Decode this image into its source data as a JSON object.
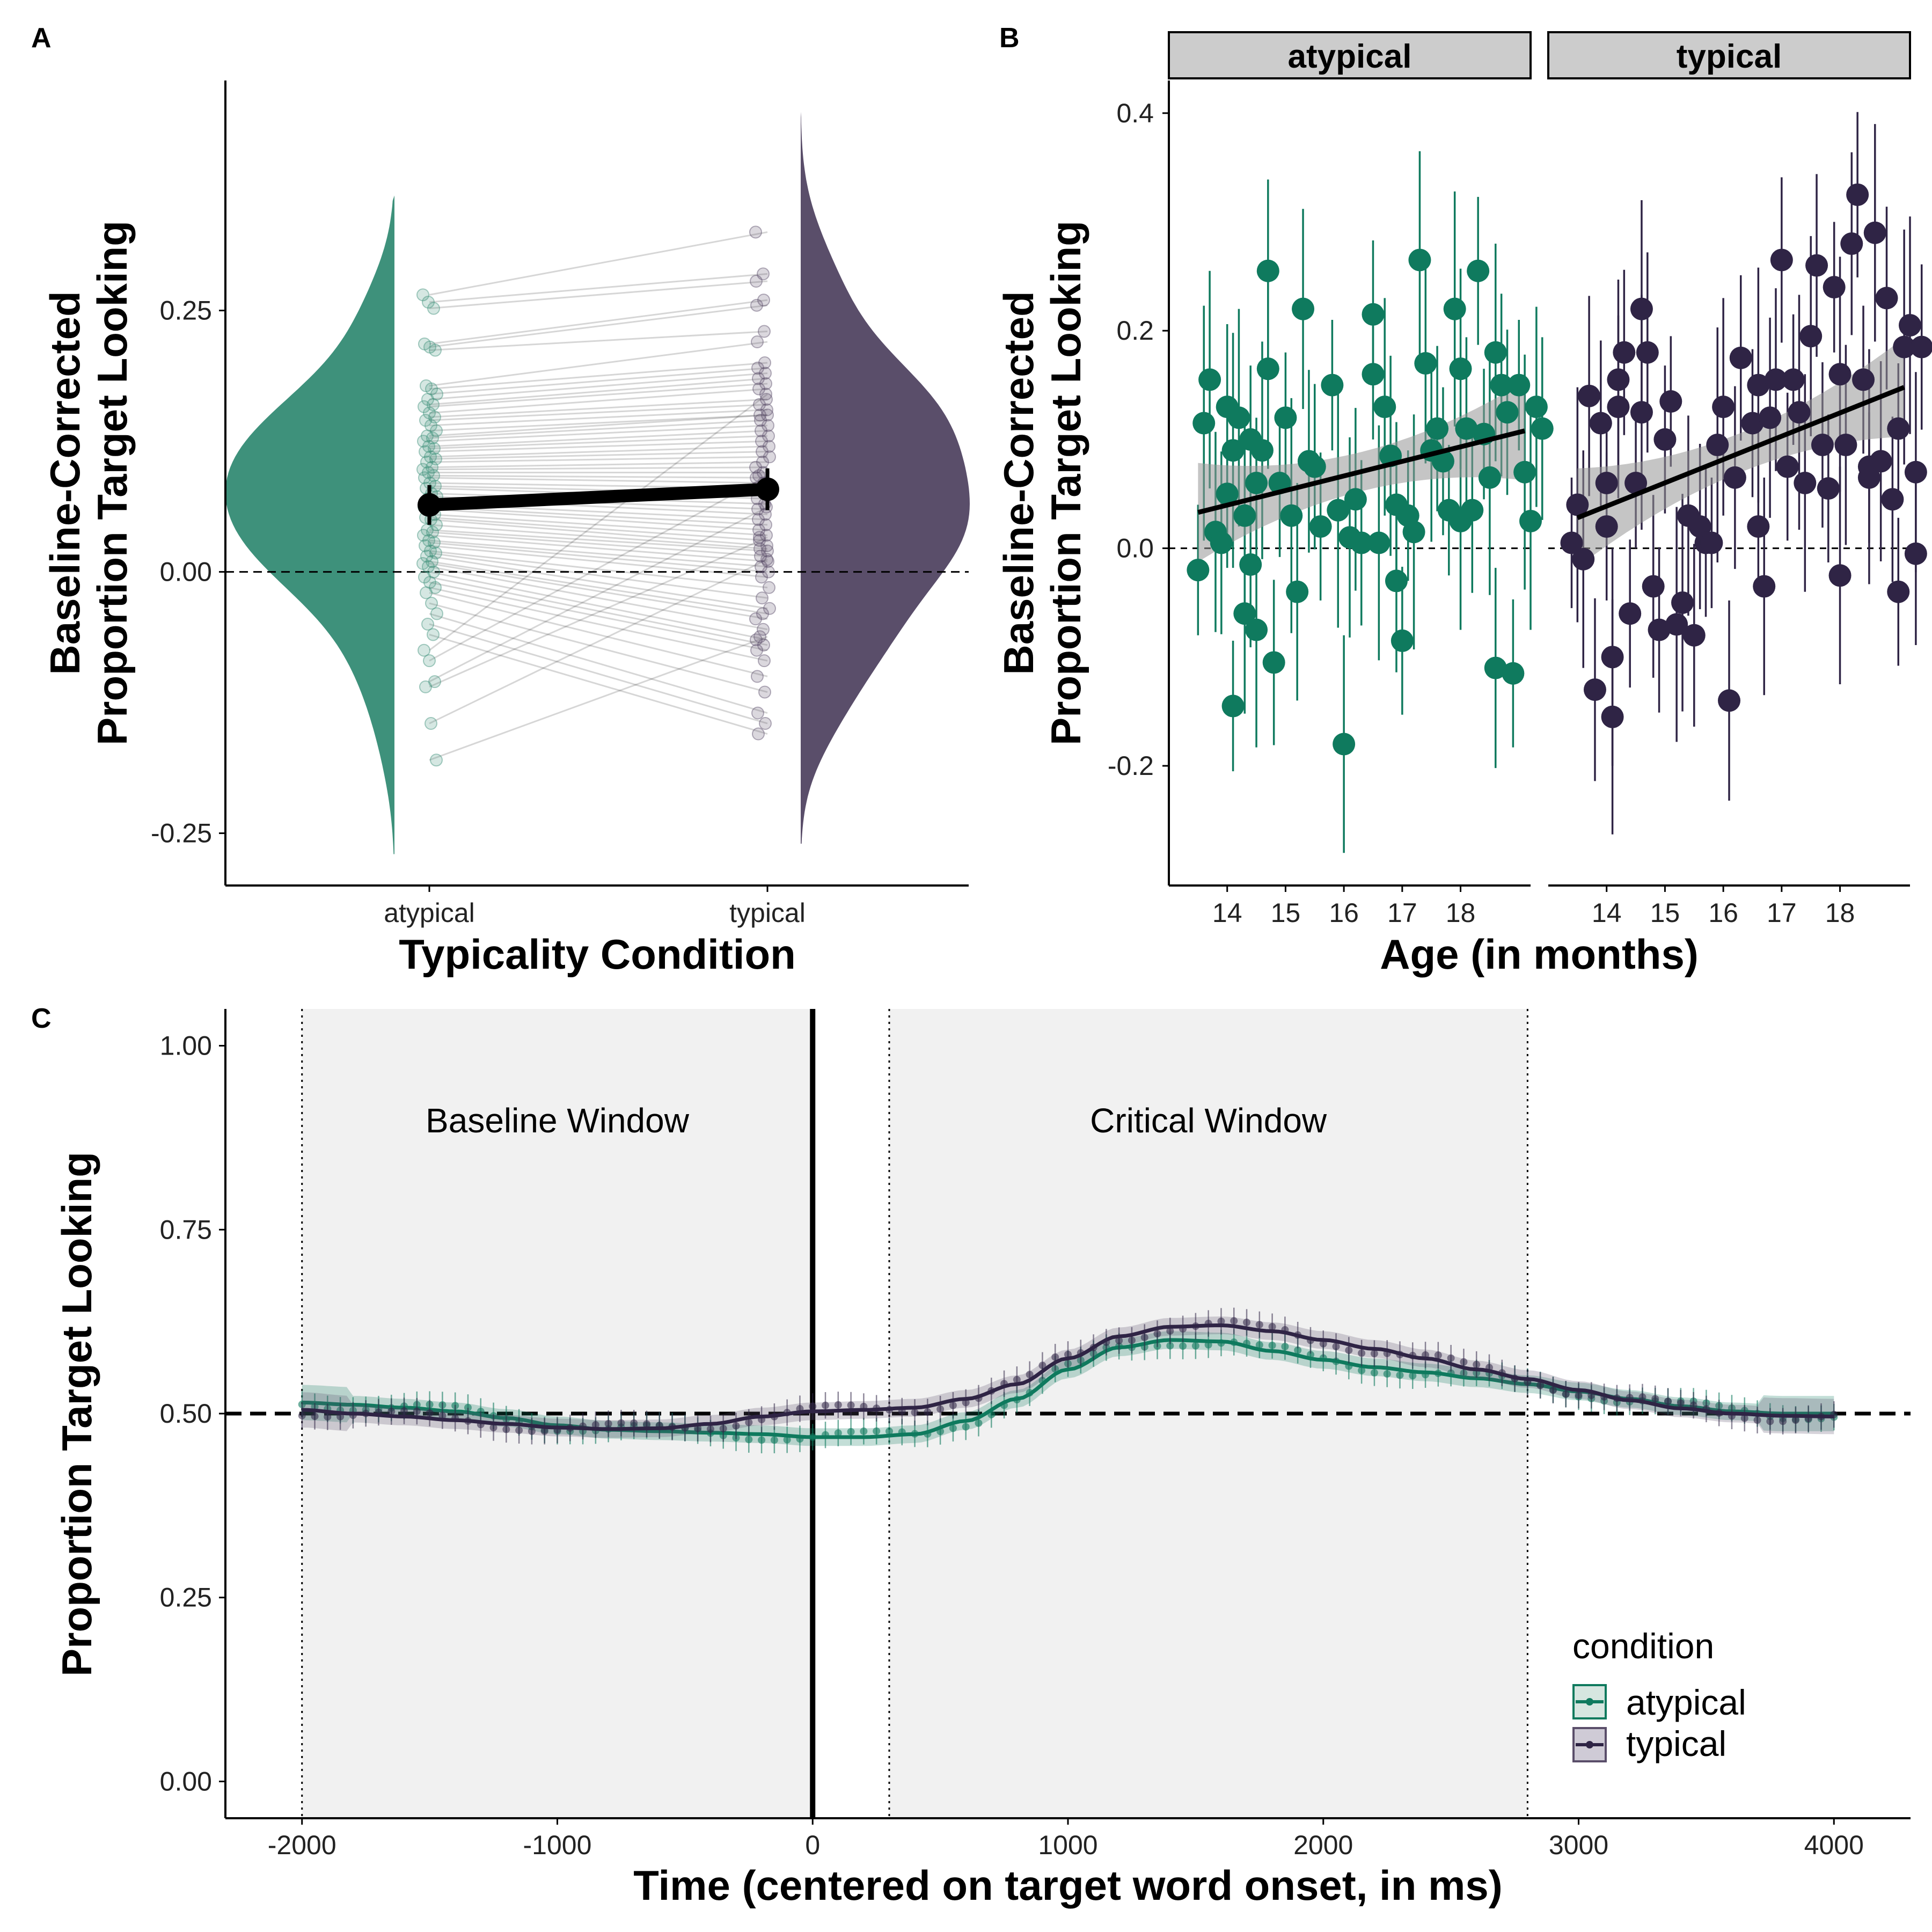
{
  "panels": {
    "A": {
      "letter": "A",
      "chart_data": {
        "type": "raincloud",
        "categories": [
          "atypical",
          "typical"
        ],
        "xlabel": "Typicality Condition",
        "ylabel_line1": "Baseline-Corrected",
        "ylabel_line2": "Proportion Target Looking",
        "ylim": [
          -0.3,
          0.47
        ],
        "yticks": [
          "-0.25",
          "0.00",
          "0.25"
        ],
        "reference_line": 0.0,
        "means": [
          0.064,
          0.079
        ],
        "mean_ci": [
          [
            0.045,
            0.083
          ],
          [
            0.059,
            0.099
          ]
        ],
        "subjects_atypical": [
          0.265,
          0.258,
          0.252,
          0.218,
          0.215,
          0.212,
          0.178,
          0.175,
          0.17,
          0.165,
          0.16,
          0.158,
          0.152,
          0.148,
          0.145,
          0.14,
          0.135,
          0.13,
          0.128,
          0.125,
          0.12,
          0.118,
          0.115,
          0.11,
          0.108,
          0.105,
          0.1,
          0.098,
          0.095,
          0.092,
          0.09,
          0.085,
          0.082,
          0.08,
          0.075,
          0.072,
          0.07,
          0.065,
          0.062,
          0.06,
          0.055,
          0.052,
          0.05,
          0.045,
          0.04,
          0.038,
          0.035,
          0.03,
          0.028,
          0.025,
          0.02,
          0.018,
          0.015,
          0.01,
          0.008,
          0.005,
          0.0,
          -0.005,
          -0.01,
          -0.015,
          -0.02,
          -0.03,
          -0.04,
          -0.05,
          -0.06,
          -0.075,
          -0.085,
          -0.105,
          -0.11,
          -0.145,
          -0.18
        ],
        "subjects_typical": [
          0.325,
          0.285,
          0.278,
          0.26,
          0.255,
          0.23,
          0.22,
          0.2,
          0.195,
          0.19,
          0.185,
          0.18,
          0.175,
          0.165,
          0.16,
          0.155,
          0.15,
          0.15,
          0.145,
          0.14,
          0.135,
          0.13,
          0.125,
          0.12,
          0.115,
          0.11,
          0.105,
          0.1,
          0.095,
          0.09,
          0.085,
          0.08,
          0.075,
          0.07,
          0.065,
          0.06,
          0.055,
          0.05,
          0.045,
          0.04,
          0.035,
          0.03,
          0.025,
          0.022,
          0.02,
          0.015,
          0.01,
          0.005,
          0.0,
          -0.005,
          -0.015,
          -0.025,
          -0.035,
          -0.04,
          -0.045,
          -0.055,
          -0.065,
          -0.07,
          -0.075,
          -0.085,
          -0.1,
          -0.115,
          -0.135,
          -0.145,
          -0.155,
          0.17,
          0.092,
          0.062,
          0.033,
          0.012,
          -0.062
        ],
        "colors": {
          "atypical": "#3e917b",
          "typical": "#5a4e6a",
          "lines": "#000000"
        }
      }
    },
    "B": {
      "letter": "B",
      "chart_data": {
        "type": "scatter",
        "facets": [
          "atypical",
          "typical"
        ],
        "xlabel": "Age (in months)",
        "ylabel_line1": "Baseline-Corrected",
        "ylabel_line2": "Proportion Target Looking",
        "xlim": [
          13.0,
          19.2
        ],
        "xticks": [
          "14",
          "15",
          "16",
          "17",
          "18"
        ],
        "ylim": [
          -0.31,
          0.43
        ],
        "yticks": [
          "-0.2",
          "0.0",
          "0.2",
          "0.4"
        ],
        "reference_line": 0.0,
        "colors": {
          "atypical": "#0f7a5e",
          "typical": "#2f2445"
        },
        "series": [
          {
            "name": "atypical",
            "trend": {
              "x": [
                13.5,
                19.1
              ],
              "y": [
                0.033,
                0.108
              ]
            },
            "points": [
              [
                13.5,
                -0.02
              ],
              [
                13.6,
                0.115
              ],
              [
                13.7,
                0.155
              ],
              [
                13.8,
                0.015
              ],
              [
                13.9,
                0.005
              ],
              [
                14.0,
                0.13
              ],
              [
                14.0,
                0.05
              ],
              [
                14.1,
                -0.145
              ],
              [
                14.1,
                0.09
              ],
              [
                14.2,
                0.12
              ],
              [
                14.3,
                -0.06
              ],
              [
                14.3,
                0.03
              ],
              [
                14.4,
                -0.015
              ],
              [
                14.4,
                0.1
              ],
              [
                14.5,
                0.06
              ],
              [
                14.5,
                -0.075
              ],
              [
                14.6,
                0.09
              ],
              [
                14.7,
                0.165
              ],
              [
                14.7,
                0.255
              ],
              [
                14.8,
                -0.105
              ],
              [
                14.9,
                0.06
              ],
              [
                15.0,
                0.12
              ],
              [
                15.1,
                0.03
              ],
              [
                15.2,
                -0.04
              ],
              [
                15.3,
                0.22
              ],
              [
                15.4,
                0.08
              ],
              [
                15.5,
                0.075
              ],
              [
                15.6,
                0.02
              ],
              [
                15.8,
                0.15
              ],
              [
                15.9,
                0.035
              ],
              [
                16.0,
                -0.18
              ],
              [
                16.1,
                0.01
              ],
              [
                16.2,
                0.045
              ],
              [
                16.3,
                0.005
              ],
              [
                16.5,
                0.215
              ],
              [
                16.5,
                0.16
              ],
              [
                16.6,
                0.005
              ],
              [
                16.7,
                0.13
              ],
              [
                16.8,
                0.085
              ],
              [
                16.9,
                -0.03
              ],
              [
                16.9,
                0.04
              ],
              [
                17.0,
                -0.085
              ],
              [
                17.1,
                0.03
              ],
              [
                17.2,
                0.015
              ],
              [
                17.3,
                0.265
              ],
              [
                17.4,
                0.17
              ],
              [
                17.5,
                0.09
              ],
              [
                17.6,
                0.11
              ],
              [
                17.7,
                0.08
              ],
              [
                17.8,
                0.035
              ],
              [
                17.9,
                0.22
              ],
              [
                18.0,
                0.025
              ],
              [
                18.0,
                0.165
              ],
              [
                18.1,
                0.11
              ],
              [
                18.2,
                0.035
              ],
              [
                18.3,
                0.255
              ],
              [
                18.4,
                0.105
              ],
              [
                18.5,
                0.065
              ],
              [
                18.6,
                0.18
              ],
              [
                18.6,
                -0.11
              ],
              [
                18.7,
                0.15
              ],
              [
                18.8,
                0.125
              ],
              [
                18.9,
                -0.115
              ],
              [
                19.0,
                0.15
              ],
              [
                19.1,
                0.07
              ],
              [
                19.2,
                0.025
              ],
              [
                19.3,
                0.13
              ],
              [
                19.4,
                0.11
              ]
            ]
          },
          {
            "name": "typical",
            "trend": {
              "x": [
                13.5,
                19.1
              ],
              "y": [
                0.028,
                0.148
              ]
            },
            "points": [
              [
                13.4,
                0.005
              ],
              [
                13.5,
                0.04
              ],
              [
                13.6,
                -0.01
              ],
              [
                13.7,
                0.14
              ],
              [
                13.8,
                -0.13
              ],
              [
                13.9,
                0.115
              ],
              [
                14.0,
                0.02
              ],
              [
                14.0,
                0.06
              ],
              [
                14.1,
                -0.155
              ],
              [
                14.1,
                -0.1
              ],
              [
                14.2,
                0.155
              ],
              [
                14.2,
                0.13
              ],
              [
                14.3,
                0.18
              ],
              [
                14.4,
                -0.06
              ],
              [
                14.5,
                0.06
              ],
              [
                14.6,
                0.125
              ],
              [
                14.6,
                0.22
              ],
              [
                14.7,
                0.18
              ],
              [
                14.8,
                -0.035
              ],
              [
                14.9,
                -0.075
              ],
              [
                15.0,
                0.1
              ],
              [
                15.1,
                0.135
              ],
              [
                15.2,
                -0.07
              ],
              [
                15.3,
                -0.05
              ],
              [
                15.4,
                0.03
              ],
              [
                15.5,
                -0.08
              ],
              [
                15.6,
                0.02
              ],
              [
                15.7,
                0.005
              ],
              [
                15.8,
                0.005
              ],
              [
                15.9,
                0.095
              ],
              [
                16.0,
                0.13
              ],
              [
                16.1,
                -0.14
              ],
              [
                16.2,
                0.065
              ],
              [
                16.3,
                0.175
              ],
              [
                16.5,
                0.115
              ],
              [
                16.6,
                0.02
              ],
              [
                16.6,
                0.15
              ],
              [
                16.7,
                -0.035
              ],
              [
                16.8,
                0.12
              ],
              [
                16.9,
                0.155
              ],
              [
                17.0,
                0.265
              ],
              [
                17.1,
                0.075
              ],
              [
                17.2,
                0.155
              ],
              [
                17.3,
                0.125
              ],
              [
                17.4,
                0.06
              ],
              [
                17.5,
                0.195
              ],
              [
                17.6,
                0.26
              ],
              [
                17.7,
                0.095
              ],
              [
                17.8,
                0.055
              ],
              [
                17.9,
                0.24
              ],
              [
                18.0,
                0.16
              ],
              [
                18.0,
                -0.025
              ],
              [
                18.1,
                0.095
              ],
              [
                18.2,
                0.28
              ],
              [
                18.3,
                0.325
              ],
              [
                18.4,
                0.155
              ],
              [
                18.5,
                0.065
              ],
              [
                18.5,
                0.075
              ],
              [
                18.6,
                0.29
              ],
              [
                18.7,
                0.08
              ],
              [
                18.8,
                0.23
              ],
              [
                18.9,
                0.045
              ],
              [
                19.0,
                -0.04
              ],
              [
                19.0,
                0.11
              ],
              [
                19.1,
                0.185
              ],
              [
                19.2,
                0.205
              ],
              [
                19.3,
                0.07
              ],
              [
                19.3,
                -0.005
              ],
              [
                19.4,
                0.185
              ]
            ]
          }
        ]
      }
    },
    "C": {
      "letter": "C",
      "chart_data": {
        "type": "line",
        "xlabel": "Time (centered on target word onset, in ms)",
        "ylabel": "Proportion Target Looking",
        "xlim": [
          -2300,
          4300
        ],
        "xticks": [
          "-2000",
          "-1000",
          "0",
          "1000",
          "2000",
          "3000",
          "4000"
        ],
        "ylim": [
          -0.05,
          1.05
        ],
        "yticks": [
          "0.00",
          "0.25",
          "0.50",
          "0.75",
          "1.00"
        ],
        "reference_line": 0.5,
        "onset_line": 0,
        "windows": [
          {
            "label": "Baseline Window",
            "start": -2000,
            "end": 0
          },
          {
            "label": "Critical Window",
            "start": 300,
            "end": 2800
          }
        ],
        "legend_title": "condition",
        "colors": {
          "atypical": "#0f7a5e",
          "typical": "#2f2445"
        },
        "series": [
          {
            "name": "atypical",
            "x": [
              -2000,
              -1800,
              -1600,
              -1400,
              -1200,
              -1000,
              -800,
              -600,
              -400,
              -200,
              0,
              200,
              400,
              600,
              800,
              1000,
              1200,
              1400,
              1600,
              1800,
              2000,
              2200,
              2400,
              2600,
              2800,
              3000,
              3200,
              3400,
              3600,
              3800,
              4000
            ],
            "y": [
              0.515,
              0.512,
              0.508,
              0.503,
              0.494,
              0.484,
              0.478,
              0.476,
              0.474,
              0.472,
              0.468,
              0.468,
              0.472,
              0.49,
              0.52,
              0.56,
              0.59,
              0.6,
              0.598,
              0.585,
              0.573,
              0.563,
              0.556,
              0.548,
              0.54,
              0.53,
              0.52,
              0.51,
              0.503,
              0.5,
              0.5
            ]
          },
          {
            "name": "typical",
            "x": [
              -2000,
              -1800,
              -1600,
              -1400,
              -1200,
              -1000,
              -800,
              -600,
              -400,
              -200,
              0,
              200,
              400,
              600,
              800,
              1000,
              1200,
              1400,
              1600,
              1800,
              2000,
              2200,
              2400,
              2600,
              2800,
              3000,
              3200,
              3400,
              3600,
              3800,
              4000
            ],
            "y": [
              0.505,
              0.5,
              0.496,
              0.491,
              0.486,
              0.481,
              0.479,
              0.48,
              0.486,
              0.496,
              0.503,
              0.505,
              0.508,
              0.52,
              0.54,
              0.575,
              0.605,
              0.618,
              0.62,
              0.612,
              0.6,
              0.588,
              0.575,
              0.56,
              0.547,
              0.532,
              0.518,
              0.507,
              0.5,
              0.497,
              0.496
            ]
          }
        ]
      }
    }
  }
}
